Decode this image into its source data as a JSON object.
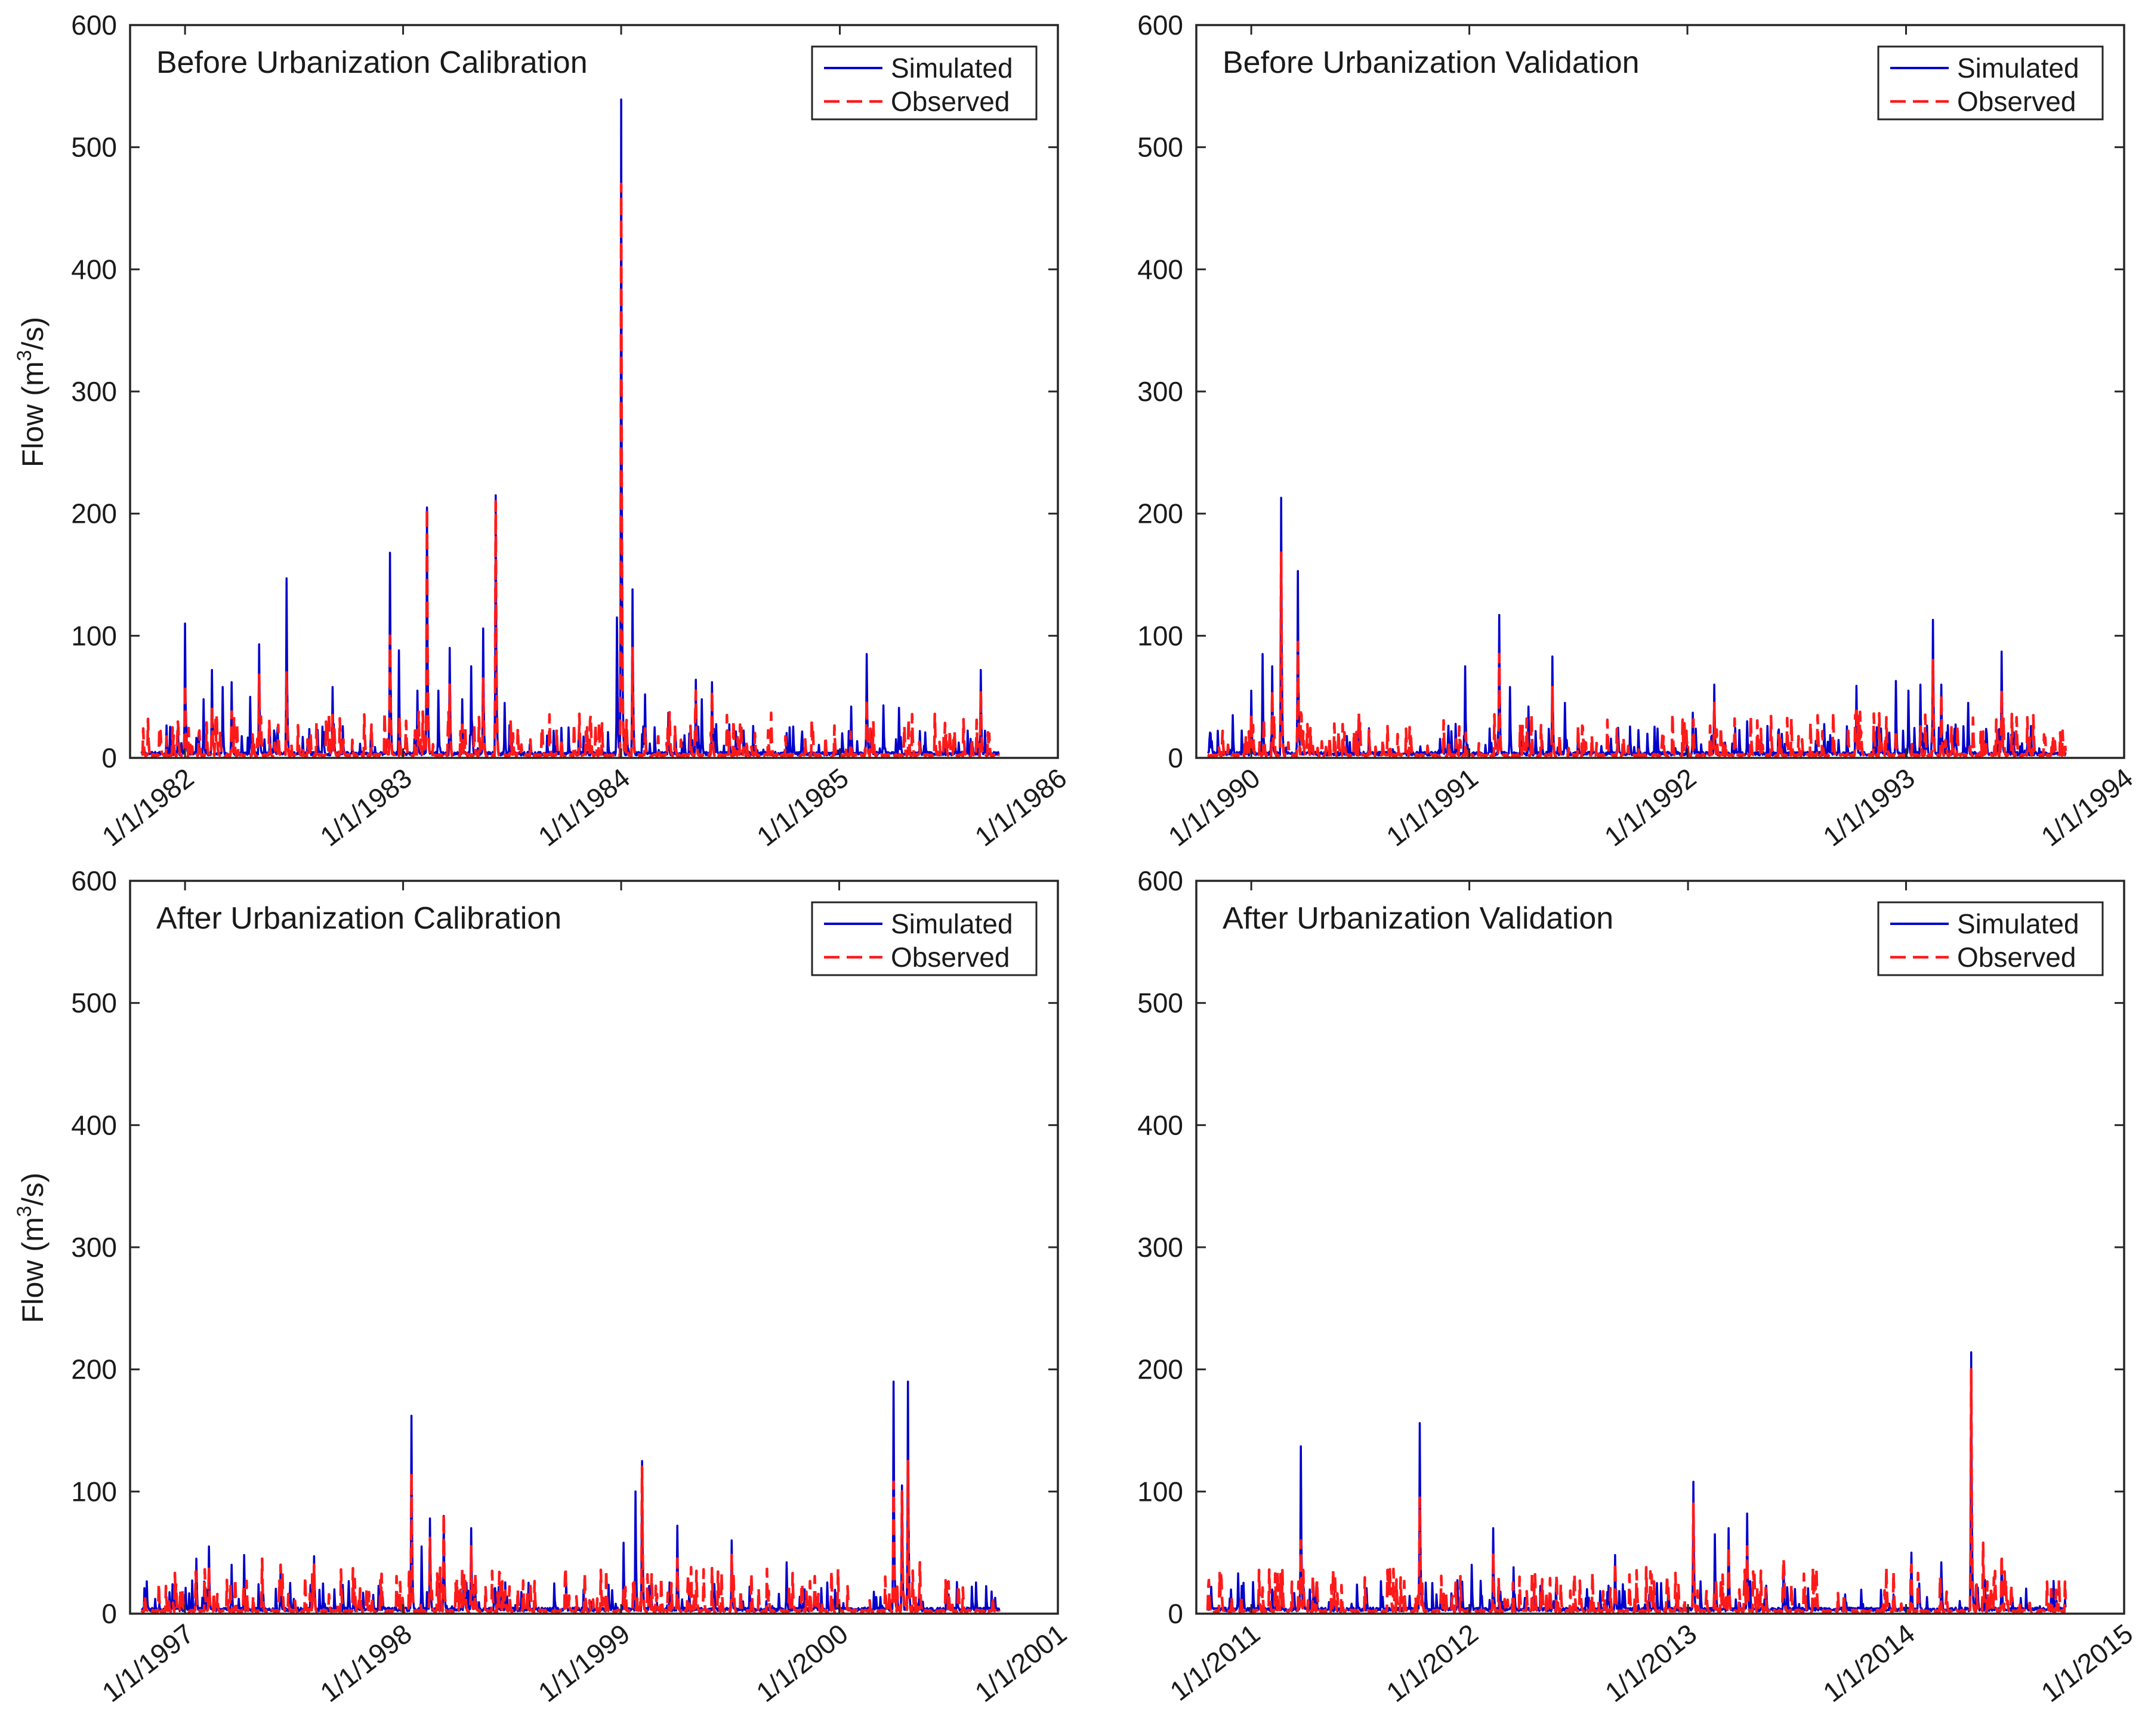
{
  "figure": {
    "ylabel_main": "Flow (m",
    "ylabel_sup": "3",
    "ylabel_tail": "/s)",
    "colors": {
      "simulated": "#0000cc",
      "observed": "#ff1a1a",
      "axis": "#262626"
    }
  },
  "chart_data": [
    {
      "type": "line",
      "title": "Before Urbanization Calibration",
      "ylabel": "Flow (m3/s)",
      "ylim": [
        0,
        600
      ],
      "yticks": [
        "0",
        "100",
        "200",
        "300",
        "400",
        "500",
        "600"
      ],
      "xlim": [
        "1981-10-01",
        "1986-01-01"
      ],
      "xticks": [
        "1/1/1982",
        "1/1/1983",
        "1/1/1984",
        "1/1/1985",
        "1/1/1986"
      ],
      "data_range": [
        "1981-10-20",
        "1985-09-25"
      ],
      "legend": {
        "position": "top-right",
        "entries": [
          "Simulated",
          "Observed"
        ]
      },
      "series": [
        {
          "name": "Simulated",
          "style": "solid",
          "peaks": [
            [
              "1981-12-20",
              25
            ],
            [
              "1982-01-01",
              110
            ],
            [
              "1982-02-01",
              48
            ],
            [
              "1982-02-15",
              72
            ],
            [
              "1982-03-05",
              58
            ],
            [
              "1982-03-20",
              62
            ],
            [
              "1982-04-20",
              50
            ],
            [
              "1982-05-05",
              93
            ],
            [
              "1982-06-05",
              25
            ],
            [
              "1982-06-20",
              147
            ],
            [
              "1982-09-05",
              58
            ],
            [
              "1982-12-10",
              168
            ],
            [
              "1982-12-25",
              88
            ],
            [
              "1983-01-25",
              55
            ],
            [
              "1983-02-10",
              205
            ],
            [
              "1983-03-01",
              55
            ],
            [
              "1983-03-20",
              90
            ],
            [
              "1983-04-10",
              48
            ],
            [
              "1983-04-25",
              75
            ],
            [
              "1983-05-15",
              106
            ],
            [
              "1983-06-05",
              215
            ],
            [
              "1983-06-20",
              45
            ],
            [
              "1983-12-25",
              115
            ],
            [
              "1984-01-01",
              539
            ],
            [
              "1984-01-20",
              138
            ],
            [
              "1984-02-10",
              52
            ],
            [
              "1984-03-20",
              37
            ],
            [
              "1984-05-05",
              64
            ],
            [
              "1984-05-15",
              48
            ],
            [
              "1984-06-01",
              62
            ],
            [
              "1985-01-20",
              42
            ],
            [
              "1985-02-15",
              85
            ],
            [
              "1985-03-15",
              43
            ],
            [
              "1985-04-10",
              41
            ],
            [
              "1985-05-15",
              22
            ],
            [
              "1985-08-25",
              72
            ]
          ]
        },
        {
          "name": "Observed",
          "style": "dashed",
          "peaks": [
            [
              "1982-01-01",
              60
            ],
            [
              "1982-02-15",
              42
            ],
            [
              "1982-03-20",
              38
            ],
            [
              "1982-05-05",
              68
            ],
            [
              "1982-06-20",
              70
            ],
            [
              "1982-09-05",
              35
            ],
            [
              "1982-12-10",
              100
            ],
            [
              "1983-02-10",
              205
            ],
            [
              "1983-03-20",
              60
            ],
            [
              "1983-05-15",
              65
            ],
            [
              "1983-06-05",
              210
            ],
            [
              "1984-01-01",
              470
            ],
            [
              "1984-01-20",
              90
            ],
            [
              "1984-05-05",
              55
            ],
            [
              "1984-06-01",
              55
            ],
            [
              "1985-02-15",
              48
            ],
            [
              "1985-08-25",
              55
            ]
          ]
        }
      ]
    },
    {
      "type": "line",
      "title": "Before Urbanization Validation",
      "ylim": [
        0,
        600
      ],
      "yticks": [
        "0",
        "100",
        "200",
        "300",
        "400",
        "500",
        "600"
      ],
      "xlim": [
        "1989-10-01",
        "1994-01-01"
      ],
      "xticks": [
        "1/1/1990",
        "1/1/1991",
        "1/1/1992",
        "1/1/1993",
        "1/1/1994"
      ],
      "data_range": [
        "1989-10-20",
        "1993-09-25"
      ],
      "legend": {
        "position": "top-right",
        "entries": [
          "Simulated",
          "Observed"
        ]
      },
      "series": [
        {
          "name": "Simulated",
          "style": "solid",
          "peaks": [
            [
              "1989-10-25",
              20
            ],
            [
              "1989-12-01",
              35
            ],
            [
              "1990-01-01",
              55
            ],
            [
              "1990-01-20",
              85
            ],
            [
              "1990-02-05",
              75
            ],
            [
              "1990-02-20",
              213
            ],
            [
              "1990-03-20",
              153
            ],
            [
              "1990-12-25",
              75
            ],
            [
              "1991-02-20",
              117
            ],
            [
              "1991-03-10",
              58
            ],
            [
              "1991-04-10",
              42
            ],
            [
              "1991-05-20",
              83
            ],
            [
              "1991-06-10",
              45
            ],
            [
              "1992-01-10",
              37
            ],
            [
              "1992-02-15",
              60
            ],
            [
              "1992-04-10",
              30
            ],
            [
              "1992-10-10",
              59
            ],
            [
              "1992-12-15",
              63
            ],
            [
              "1993-01-05",
              55
            ],
            [
              "1993-01-25",
              60
            ],
            [
              "1993-02-15",
              113
            ],
            [
              "1993-03-01",
              60
            ],
            [
              "1993-04-15",
              45
            ],
            [
              "1993-06-10",
              87
            ]
          ]
        },
        {
          "name": "Observed",
          "style": "dashed",
          "peaks": [
            [
              "1990-01-01",
              35
            ],
            [
              "1990-02-05",
              55
            ],
            [
              "1990-02-20",
              168
            ],
            [
              "1990-03-20",
              95
            ],
            [
              "1991-02-20",
              85
            ],
            [
              "1991-05-20",
              58
            ],
            [
              "1991-07-10",
              25
            ],
            [
              "1992-02-15",
              45
            ],
            [
              "1992-10-10",
              42
            ],
            [
              "1993-02-15",
              80
            ],
            [
              "1993-03-01",
              52
            ],
            [
              "1993-06-10",
              55
            ]
          ]
        }
      ]
    },
    {
      "type": "line",
      "title": "After Urbanization Calibration",
      "ylabel": "Flow (m3/s)",
      "ylim": [
        0,
        600
      ],
      "yticks": [
        "0",
        "100",
        "200",
        "300",
        "400",
        "500",
        "600"
      ],
      "xlim": [
        "1996-10-01",
        "2001-01-01"
      ],
      "xticks": [
        "1/1/1997",
        "1/1/1998",
        "1/1/1999",
        "1/1/2000",
        "1/1/2001"
      ],
      "data_range": [
        "1996-10-20",
        "2000-09-25"
      ],
      "legend": {
        "position": "top-right",
        "entries": [
          "Simulated",
          "Observed"
        ]
      },
      "series": [
        {
          "name": "Simulated",
          "style": "solid",
          "peaks": [
            [
              "1997-01-20",
              45
            ],
            [
              "1997-02-10",
              55
            ],
            [
              "1997-03-20",
              40
            ],
            [
              "1997-04-10",
              48
            ],
            [
              "1997-06-10",
              40
            ],
            [
              "1997-08-05",
              47
            ],
            [
              "1998-01-15",
              162
            ],
            [
              "1998-02-01",
              55
            ],
            [
              "1998-02-15",
              78
            ],
            [
              "1998-03-10",
              80
            ],
            [
              "1998-04-25",
              70
            ],
            [
              "1999-01-05",
              58
            ],
            [
              "1999-01-25",
              100
            ],
            [
              "1999-02-05",
              125
            ],
            [
              "1999-04-05",
              72
            ],
            [
              "1999-07-05",
              60
            ],
            [
              "1999-10-05",
              42
            ],
            [
              "2000-04-01",
              190
            ],
            [
              "2000-04-15",
              105
            ],
            [
              "2000-04-25",
              190
            ]
          ]
        },
        {
          "name": "Observed",
          "style": "dashed",
          "peaks": [
            [
              "1997-02-10",
              38
            ],
            [
              "1997-05-10",
              45
            ],
            [
              "1997-06-10",
              40
            ],
            [
              "1997-08-05",
              40
            ],
            [
              "1998-01-15",
              115
            ],
            [
              "1998-02-15",
              62
            ],
            [
              "1998-03-10",
              82
            ],
            [
              "1998-04-25",
              55
            ],
            [
              "1999-02-05",
              120
            ],
            [
              "1999-04-05",
              45
            ],
            [
              "1999-07-05",
              48
            ],
            [
              "2000-04-01",
              108
            ],
            [
              "2000-04-15",
              100
            ],
            [
              "2000-04-25",
              125
            ],
            [
              "2000-05-15",
              42
            ]
          ]
        }
      ]
    },
    {
      "type": "line",
      "title": "After Urbanization Validation",
      "ylim": [
        0,
        600
      ],
      "yticks": [
        "0",
        "100",
        "200",
        "300",
        "400",
        "500",
        "600"
      ],
      "xlim": [
        "2010-10-01",
        "2015-01-01"
      ],
      "xticks": [
        "1/1/2011",
        "1/1/2012",
        "1/1/2013",
        "1/1/2014",
        "1/1/2015"
      ],
      "data_range": [
        "2010-10-20",
        "2014-09-25"
      ],
      "legend": {
        "position": "top-right",
        "entries": [
          "Simulated",
          "Observed"
        ]
      },
      "series": [
        {
          "name": "Simulated",
          "style": "solid",
          "peaks": [
            [
              "2010-12-10",
              33
            ],
            [
              "2011-03-25",
              137
            ],
            [
              "2011-04-20",
              25
            ],
            [
              "2011-10-10",
              156
            ],
            [
              "2012-01-05",
              40
            ],
            [
              "2012-02-10",
              70
            ],
            [
              "2012-03-15",
              38
            ],
            [
              "2012-09-01",
              48
            ],
            [
              "2013-01-10",
              108
            ],
            [
              "2013-02-15",
              65
            ],
            [
              "2013-03-10",
              70
            ],
            [
              "2013-04-10",
              82
            ],
            [
              "2013-06-10",
              40
            ],
            [
              "2014-01-10",
              50
            ],
            [
              "2014-03-01",
              42
            ],
            [
              "2014-04-20",
              214
            ],
            [
              "2014-06-10",
              45
            ]
          ]
        },
        {
          "name": "Observed",
          "style": "dashed",
          "peaks": [
            [
              "2011-03-25",
              60
            ],
            [
              "2011-10-10",
              95
            ],
            [
              "2012-02-10",
              50
            ],
            [
              "2012-09-01",
              42
            ],
            [
              "2013-01-10",
              90
            ],
            [
              "2013-03-10",
              55
            ],
            [
              "2013-04-10",
              55
            ],
            [
              "2013-06-10",
              45
            ],
            [
              "2014-01-10",
              40
            ],
            [
              "2014-04-20",
              200
            ],
            [
              "2014-05-10",
              58
            ],
            [
              "2014-06-10",
              48
            ],
            [
              "2014-09-01",
              20
            ]
          ]
        }
      ]
    }
  ]
}
